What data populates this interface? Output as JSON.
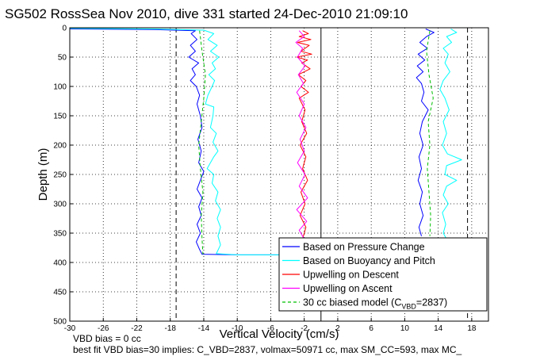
{
  "chart_data": {
    "type": "line",
    "title": "SG502 RossSea Nov 2010, dive 331 started 24-Dec-2010 21:09:10",
    "xlabel": "Vertical Velocity (cm/s)",
    "ylabel": "Depth (m)",
    "xlim": [
      -30,
      20
    ],
    "ylim": [
      0,
      500
    ],
    "y_reversed": true,
    "grid": true,
    "x_ticks": [
      -30,
      -26,
      -22,
      -18,
      -14,
      -10,
      -6,
      -2,
      2,
      6,
      10,
      14,
      18
    ],
    "y_ticks": [
      0,
      50,
      100,
      150,
      200,
      250,
      300,
      350,
      400,
      450,
      500
    ],
    "legend_position": "bottom-right",
    "legend": [
      {
        "label": "Based on Pressure Change",
        "color": "#0000ff",
        "style": "solid"
      },
      {
        "label": "Based on Buoyancy and Pitch",
        "color": "#00ffff",
        "style": "solid"
      },
      {
        "label": "Upwelling on Descent",
        "color": "#ff0000",
        "style": "solid"
      },
      {
        "label": "Upwelling on Ascent",
        "color": "#ff00ff",
        "style": "solid"
      },
      {
        "label": "30 cc biased model (C",
        "sub": "VBD",
        "label_suffix": "=2837)",
        "color": "#00c000",
        "style": "dashed"
      }
    ],
    "reference_lines": [
      {
        "x": -17.3,
        "color": "#000000",
        "style": "dashed"
      },
      {
        "x": 0,
        "color": "#000000",
        "style": "solid"
      },
      {
        "x": 17.5,
        "color": "#000000",
        "style": "dashed"
      }
    ],
    "series": [
      {
        "name": "Based on Pressure Change",
        "color": "#0000ff",
        "segments": [
          {
            "points": [
              [
                -30,
                2
              ],
              [
                -20,
                3
              ],
              [
                -15,
                5
              ],
              [
                -15.5,
                10
              ],
              [
                -14.8,
                20
              ],
              [
                -15.6,
                30
              ],
              [
                -15.0,
                40
              ],
              [
                -15.8,
                50
              ],
              [
                -14.6,
                60
              ],
              [
                -15.4,
                70
              ],
              [
                -15.0,
                80
              ],
              [
                -15.6,
                90
              ],
              [
                -14.9,
                100
              ],
              [
                -14.5,
                115
              ],
              [
                -14.8,
                130
              ],
              [
                -14.4,
                150
              ],
              [
                -14.2,
                170
              ],
              [
                -14.7,
                190
              ],
              [
                -14.3,
                210
              ],
              [
                -14.6,
                230
              ],
              [
                -14.0,
                245
              ],
              [
                -14.4,
                260
              ],
              [
                -14.8,
                275
              ],
              [
                -14.2,
                290
              ],
              [
                -14.6,
                305
              ],
              [
                -14.3,
                320
              ],
              [
                -14.8,
                335
              ],
              [
                -14.4,
                350
              ],
              [
                -14.9,
                365
              ],
              [
                -14.5,
                378
              ],
              [
                -14.2,
                386
              ],
              [
                -10,
                387
              ],
              [
                -3,
                387
              ]
            ]
          },
          {
            "points": [
              [
                12.5,
                2
              ],
              [
                13.5,
                8
              ],
              [
                12.6,
                15
              ],
              [
                11.8,
                25
              ],
              [
                12.7,
                35
              ],
              [
                11.6,
                45
              ],
              [
                12.4,
                55
              ],
              [
                11.5,
                65
              ],
              [
                12.2,
                75
              ],
              [
                11.4,
                85
              ],
              [
                12.0,
                95
              ],
              [
                12.3,
                110
              ],
              [
                12.0,
                125
              ],
              [
                12.8,
                140
              ],
              [
                12.1,
                160
              ],
              [
                11.8,
                180
              ],
              [
                12.2,
                200
              ],
              [
                11.7,
                220
              ],
              [
                12.0,
                240
              ],
              [
                11.6,
                260
              ],
              [
                12.1,
                280
              ],
              [
                11.8,
                300
              ],
              [
                12.2,
                320
              ],
              [
                11.7,
                340
              ],
              [
                12.0,
                355
              ]
            ]
          }
        ]
      },
      {
        "name": "Based on Buoyancy and Pitch",
        "color": "#00ffff",
        "segments": [
          {
            "points": [
              [
                -30,
                1
              ],
              [
                -20,
                2
              ],
              [
                -14,
                4
              ],
              [
                -12.8,
                10
              ],
              [
                -13.5,
                20
              ],
              [
                -12.4,
                30
              ],
              [
                -13.2,
                40
              ],
              [
                -12.2,
                50
              ],
              [
                -13.0,
                60
              ],
              [
                -12.6,
                70
              ],
              [
                -13.4,
                80
              ],
              [
                -12.7,
                90
              ],
              [
                -13.0,
                100
              ],
              [
                -13.5,
                115
              ],
              [
                -13.8,
                130
              ],
              [
                -12.8,
                135
              ],
              [
                -12.9,
                150
              ],
              [
                -13.2,
                170
              ],
              [
                -12.5,
                180
              ],
              [
                -12.9,
                195
              ],
              [
                -12.3,
                210
              ],
              [
                -12.8,
                220
              ],
              [
                -13.6,
                240
              ],
              [
                -12.8,
                250
              ],
              [
                -13.0,
                265
              ],
              [
                -12.3,
                280
              ],
              [
                -12.6,
                295
              ],
              [
                -12.0,
                310
              ],
              [
                -12.4,
                325
              ],
              [
                -12.0,
                340
              ],
              [
                -12.3,
                355
              ],
              [
                -12.0,
                370
              ],
              [
                -12.5,
                385
              ],
              [
                -10,
                387
              ],
              [
                -3,
                387
              ]
            ]
          },
          {
            "points": [
              [
                15.5,
                2
              ],
              [
                16.2,
                8
              ],
              [
                15.0,
                15
              ],
              [
                15.6,
                25
              ],
              [
                14.6,
                35
              ],
              [
                15.2,
                45
              ],
              [
                14.8,
                60
              ],
              [
                15.4,
                75
              ],
              [
                14.6,
                90
              ],
              [
                14.2,
                105
              ],
              [
                14.8,
                120
              ],
              [
                15.3,
                140
              ],
              [
                14.6,
                160
              ],
              [
                15.0,
                180
              ],
              [
                14.5,
                200
              ],
              [
                15.1,
                215
              ],
              [
                16.8,
                225
              ],
              [
                15.0,
                235
              ],
              [
                14.8,
                250
              ],
              [
                16.2,
                260
              ],
              [
                15.0,
                270
              ],
              [
                14.6,
                285
              ],
              [
                15.2,
                300
              ],
              [
                14.5,
                315
              ],
              [
                14.9,
                335
              ],
              [
                14.6,
                350
              ],
              [
                15.0,
                360
              ]
            ]
          }
        ]
      },
      {
        "name": "Upwelling on Descent",
        "color": "#ff0000",
        "segments": [
          {
            "points": [
              [
                -2.2,
                5
              ],
              [
                -1.5,
                10
              ],
              [
                -2.6,
                15
              ],
              [
                -1.2,
                20
              ],
              [
                -2.8,
                25
              ],
              [
                -1.4,
                30
              ],
              [
                -2.4,
                40
              ],
              [
                -1.1,
                45
              ],
              [
                -2.9,
                50
              ],
              [
                -1.6,
                55
              ],
              [
                -2.3,
                60
              ],
              [
                -1.3,
                70
              ],
              [
                -2.7,
                80
              ],
              [
                -1.8,
                90
              ],
              [
                -2.4,
                100
              ],
              [
                -1.5,
                110
              ],
              [
                -2.6,
                120
              ],
              [
                -1.9,
                140
              ],
              [
                -2.3,
                160
              ],
              [
                -1.7,
                180
              ],
              [
                -2.5,
                200
              ],
              [
                -1.8,
                220
              ],
              [
                -2.2,
                240
              ],
              [
                -1.6,
                260
              ],
              [
                -2.4,
                280
              ],
              [
                -1.9,
                300
              ],
              [
                -2.5,
                320
              ],
              [
                -1.8,
                340
              ],
              [
                -2.2,
                360
              ]
            ]
          }
        ]
      },
      {
        "name": "Upwelling on Ascent",
        "color": "#ff00ff",
        "segments": [
          {
            "points": [
              [
                -2.6,
                5
              ],
              [
                -2.0,
                15
              ],
              [
                -3.0,
                25
              ],
              [
                -2.2,
                35
              ],
              [
                -2.8,
                50
              ],
              [
                -1.9,
                65
              ],
              [
                -2.7,
                80
              ],
              [
                -2.1,
                95
              ],
              [
                -2.9,
                110
              ],
              [
                -2.0,
                130
              ],
              [
                -2.6,
                150
              ],
              [
                -1.8,
                170
              ],
              [
                -2.5,
                190
              ],
              [
                -2.0,
                210
              ],
              [
                -2.8,
                230
              ],
              [
                -1.9,
                250
              ],
              [
                -2.6,
                270
              ],
              [
                -1.6,
                290
              ],
              [
                -2.9,
                310
              ],
              [
                -1.7,
                330
              ],
              [
                -2.6,
                345
              ],
              [
                -2.0,
                360
              ]
            ]
          }
        ]
      },
      {
        "name": "30 cc biased model (CVBD=2837)",
        "color": "#00c000",
        "style": "dashed",
        "segments": [
          {
            "points": [
              [
                -14.5,
                5
              ],
              [
                -14.2,
                40
              ],
              [
                -13.8,
                80
              ],
              [
                -14.0,
                120
              ],
              [
                -14.3,
                160
              ],
              [
                -14.6,
                200
              ],
              [
                -14.4,
                240
              ],
              [
                -14.1,
                280
              ],
              [
                -14.3,
                320
              ],
              [
                -14.2,
                360
              ],
              [
                -14.1,
                386
              ]
            ]
          },
          {
            "points": [
              [
                13.0,
                5
              ],
              [
                12.6,
                40
              ],
              [
                12.9,
                80
              ],
              [
                13.4,
                120
              ],
              [
                12.8,
                160
              ],
              [
                13.0,
                200
              ],
              [
                12.7,
                240
              ],
              [
                12.9,
                280
              ],
              [
                13.1,
                320
              ],
              [
                13.0,
                355
              ]
            ]
          }
        ]
      }
    ],
    "annotations": {
      "vbd_bias": "VBD bias = 0 cc",
      "best_fit": "best fit VBD bias=30 implies: C_VBD=2837, volmax=50971 cc, max SM_CC=593, max MC_"
    }
  }
}
